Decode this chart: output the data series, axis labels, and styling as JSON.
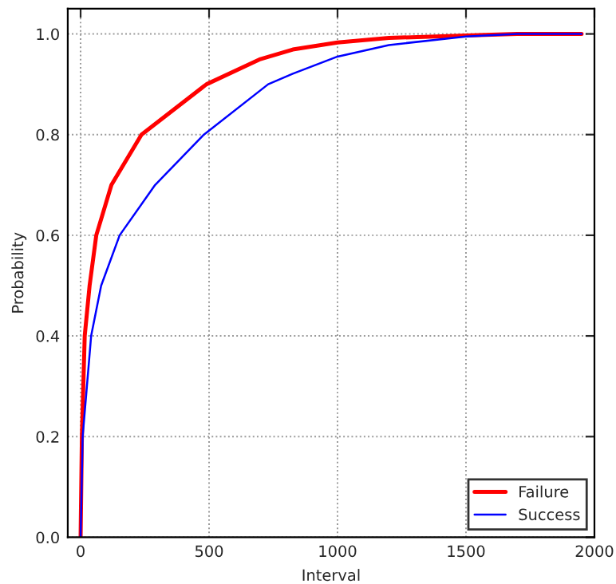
{
  "chart_data": {
    "type": "line",
    "xlabel": "Interval",
    "ylabel": "Probability",
    "series": [
      {
        "name": "Failure",
        "color": "#ff0000",
        "x": [
          0,
          5,
          16,
          35,
          61,
          120,
          237,
          490,
          700,
          826,
          1000,
          1200,
          1500,
          1700,
          1950
        ],
        "values": [
          0,
          0.2,
          0.4,
          0.5,
          0.6,
          0.7,
          0.8,
          0.9,
          0.95,
          0.969,
          0.983,
          0.992,
          0.997,
          1.0,
          1.0
        ]
      },
      {
        "name": "Success",
        "color": "#0000ff",
        "x": [
          0,
          8,
          41,
          80,
          152,
          290,
          480,
          730,
          826,
          1000,
          1200,
          1500,
          1700,
          1950
        ],
        "values": [
          0,
          0.2,
          0.4,
          0.5,
          0.6,
          0.7,
          0.8,
          0.9,
          0.921,
          0.955,
          0.978,
          0.995,
          1.0,
          1.0
        ]
      }
    ],
    "xlim": [
      -50,
      2000
    ],
    "ylim": [
      0,
      1.05
    ],
    "xticks": [
      0,
      500,
      1000,
      1500,
      2000
    ],
    "yticks": [
      {
        "value": 0,
        "label": "0.0"
      },
      0.2,
      0.4,
      0.6,
      0.8,
      {
        "value": 1,
        "label": "1.0"
      }
    ],
    "grid": true,
    "legend": "bottom right",
    "line_style": "solid",
    "marker": "none"
  }
}
